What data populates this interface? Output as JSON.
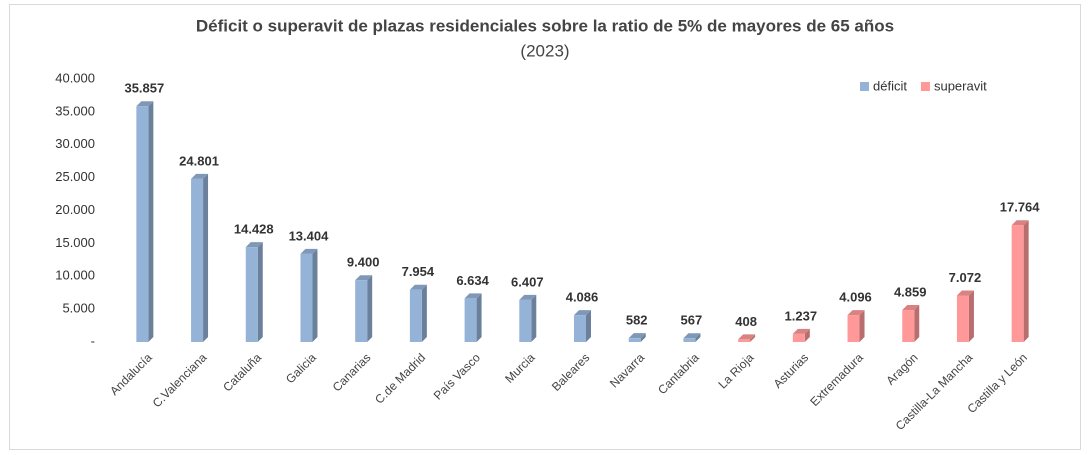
{
  "chart_data": {
    "type": "bar3d",
    "title": "Déficit o superavit de plazas residenciales sobre la ratio de 5% de mayores de 65 años",
    "subtitle": "(2023)",
    "categories": [
      "Andalucía",
      "C.Valenciana",
      "Cataluña",
      "Galicia",
      "Canarias",
      "C.de Madrid",
      "País Vasco",
      "Murcia",
      "Baleares",
      "Navarra",
      "Cantabria",
      "La Rioja",
      "Asturias",
      "Extremadura",
      "Aragón",
      "Castilla-La Mancha",
      "Castilla y León"
    ],
    "series": [
      {
        "name": "déficit",
        "color": "#95b3d7",
        "values": [
          35857,
          24801,
          14428,
          13404,
          9400,
          7954,
          6634,
          6407,
          4086,
          582,
          567,
          null,
          null,
          null,
          null,
          null,
          null
        ],
        "value_labels": [
          "35.857",
          "24.801",
          "14.428",
          "13.404",
          "9.400",
          "7.954",
          "6.634",
          "6.407",
          "4.086",
          "582",
          "567",
          null,
          null,
          null,
          null,
          null,
          null
        ]
      },
      {
        "name": "superavit",
        "color": "#ff9999",
        "values": [
          null,
          null,
          null,
          null,
          null,
          null,
          null,
          null,
          null,
          null,
          null,
          408,
          1237,
          4096,
          4859,
          7072,
          17764
        ],
        "value_labels": [
          null,
          null,
          null,
          null,
          null,
          null,
          null,
          null,
          null,
          null,
          null,
          "408",
          "1.237",
          "4.096",
          "4.859",
          "7.072",
          "17.764"
        ]
      }
    ],
    "ylim": [
      0,
      40000
    ],
    "yticks": [
      {
        "value": 0,
        "label": "-"
      },
      {
        "value": 5000,
        "label": "5.000"
      },
      {
        "value": 10000,
        "label": "10.000"
      },
      {
        "value": 15000,
        "label": "15.000"
      },
      {
        "value": 20000,
        "label": "20.000"
      },
      {
        "value": 25000,
        "label": "25.000"
      },
      {
        "value": 30000,
        "label": "30.000"
      },
      {
        "value": 35000,
        "label": "35.000"
      },
      {
        "value": 40000,
        "label": "40.000"
      }
    ],
    "legend": "upper right",
    "grid": false
  }
}
